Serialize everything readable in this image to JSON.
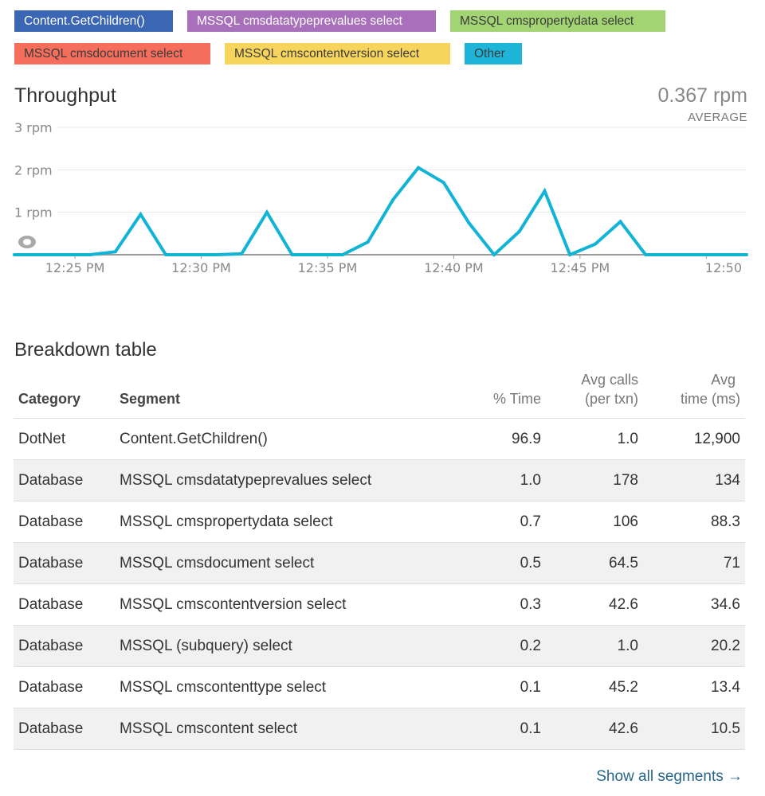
{
  "legend": [
    {
      "label": "Content.GetChildren()",
      "bg": "#3a66b3",
      "fg": "#ffffff"
    },
    {
      "label": "MSSQL cmsdatatypeprevalues select",
      "bg": "#a86fba",
      "fg": "#ffffff"
    },
    {
      "label": "MSSQL cmspropertydata select",
      "bg": "#a3d474",
      "fg": "#3b3b3b"
    },
    {
      "label": "MSSQL cmsdocument select",
      "bg": "#f56e5c",
      "fg": "#3b3b3b"
    },
    {
      "label": "MSSQL cmscontentversion select",
      "bg": "#f7d55c",
      "fg": "#3b3b3b"
    },
    {
      "label": "Other",
      "bg": "#1fb5d9",
      "fg": "#3b3b3b"
    }
  ],
  "throughput": {
    "title": "Throughput",
    "average_value": "0.367 rpm",
    "average_label": "AVERAGE"
  },
  "chart_data": {
    "type": "line",
    "line_color": "#11b3d6",
    "y_ticks": [
      "3 rpm",
      "2 rpm",
      "1 rpm"
    ],
    "y_tick_values": [
      3,
      2,
      1
    ],
    "ylim": [
      0,
      3
    ],
    "x_tick_labels": [
      "12:25 PM",
      "12:30 PM",
      "12:35 PM",
      "12:40 PM",
      "12:45 PM",
      "12:50"
    ],
    "x_tick_minutes": [
      25,
      30,
      35,
      40,
      45,
      50
    ],
    "x_range_minutes": [
      22.6,
      51.6
    ],
    "grid": true,
    "series": [
      {
        "x": [
          22.6,
          23.6,
          24.6,
          25.6,
          26.6,
          27.6,
          28.6,
          29.6,
          30.6,
          31.6,
          32.6,
          33.6,
          34.6,
          35.6,
          36.6,
          37.6,
          38.6,
          39.6,
          40.6,
          41.6,
          42.6,
          43.6,
          44.6,
          45.6,
          46.6,
          47.6,
          48.6,
          49.6,
          50.6,
          51.6
        ],
        "y": [
          0,
          0,
          0,
          0,
          0.07,
          0.95,
          0,
          0,
          0,
          0.02,
          1.0,
          0,
          0,
          0,
          0.3,
          1.3,
          2.05,
          1.7,
          0.75,
          0,
          0.55,
          1.5,
          0,
          0.25,
          0.78,
          0,
          0,
          0,
          0,
          0
        ]
      }
    ]
  },
  "breakdown": {
    "title": "Breakdown table",
    "headers": {
      "category": "Category",
      "segment": "Segment",
      "time_pct": "% Time",
      "avg_calls_1": "Avg calls",
      "avg_calls_2": "(per txn)",
      "avg_time_1": "Avg",
      "avg_time_2": "time (ms)"
    },
    "rows": [
      {
        "category": "DotNet",
        "segment": "Content.GetChildren()",
        "time_pct": "96.9",
        "avg_calls": "1.0",
        "avg_time": "12,900"
      },
      {
        "category": "Database",
        "segment": "MSSQL cmsdatatypeprevalues select",
        "time_pct": "1.0",
        "avg_calls": "178",
        "avg_time": "134"
      },
      {
        "category": "Database",
        "segment": "MSSQL cmspropertydata select",
        "time_pct": "0.7",
        "avg_calls": "106",
        "avg_time": "88.3"
      },
      {
        "category": "Database",
        "segment": "MSSQL cmsdocument select",
        "time_pct": "0.5",
        "avg_calls": "64.5",
        "avg_time": "71"
      },
      {
        "category": "Database",
        "segment": "MSSQL cmscontentversion select",
        "time_pct": "0.3",
        "avg_calls": "42.6",
        "avg_time": "34.6"
      },
      {
        "category": "Database",
        "segment": "MSSQL (subquery) select",
        "time_pct": "0.2",
        "avg_calls": "1.0",
        "avg_time": "20.2"
      },
      {
        "category": "Database",
        "segment": "MSSQL cmscontenttype select",
        "time_pct": "0.1",
        "avg_calls": "45.2",
        "avg_time": "13.4"
      },
      {
        "category": "Database",
        "segment": "MSSQL cmscontent select",
        "time_pct": "0.1",
        "avg_calls": "42.6",
        "avg_time": "10.5"
      }
    ],
    "show_all": "Show all segments →"
  }
}
